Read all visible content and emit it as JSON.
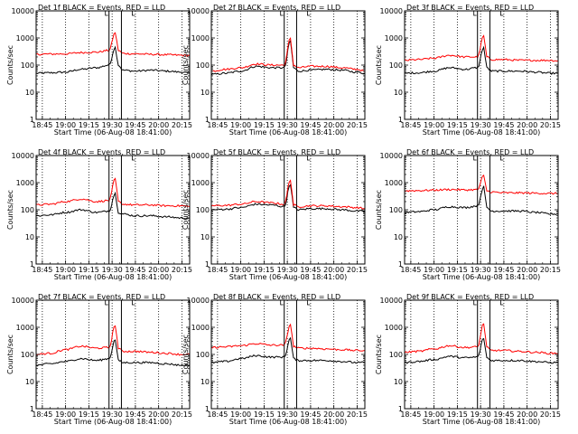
{
  "figure": {
    "xlabel": "Start Time (06-Aug-08 18:41:00)",
    "ylabel": "Counts/sec",
    "x_ticks": [
      "18:45",
      "19:00",
      "19:15",
      "19:30",
      "19:45",
      "20:00",
      "20:15"
    ],
    "y_ticks": [
      "1",
      "10",
      "100",
      "1000",
      "10000"
    ],
    "colors": {
      "events": "#000000",
      "lld": "#ff0000",
      "axes": "#000000",
      "background": "#ffffff"
    }
  },
  "chart_data": [
    {
      "type": "line",
      "title": "Det 1f BLACK = Events, RED = LLD",
      "x": [
        "18:41",
        "18:50",
        "19:00",
        "19:10",
        "19:20",
        "19:28",
        "19:32",
        "19:34",
        "19:37",
        "19:45",
        "19:55",
        "20:05",
        "20:15",
        "20:20"
      ],
      "series": [
        {
          "name": "Events",
          "color": "#000000",
          "values": [
            50,
            52,
            55,
            70,
            80,
            100,
            450,
            100,
            65,
            60,
            65,
            60,
            55,
            50
          ]
        },
        {
          "name": "LLD",
          "color": "#ff0000",
          "values": [
            250,
            255,
            260,
            290,
            300,
            350,
            1600,
            350,
            270,
            260,
            250,
            240,
            230,
            225
          ]
        }
      ],
      "xlim": [
        "18:41",
        "20:20"
      ],
      "ylim": [
        1,
        10000
      ],
      "log_y": true,
      "markers": [
        "19:28",
        "19:36"
      ],
      "grid": "x-dotted"
    },
    {
      "type": "line",
      "title": "Det 2f BLACK = Events, RED = LLD",
      "x": [
        "18:41",
        "18:50",
        "19:00",
        "19:10",
        "19:20",
        "19:28",
        "19:32",
        "19:34",
        "19:37",
        "19:45",
        "19:55",
        "20:05",
        "20:15",
        "20:20"
      ],
      "series": [
        {
          "name": "Events",
          "color": "#000000",
          "values": [
            45,
            50,
            60,
            90,
            80,
            80,
            800,
            80,
            60,
            65,
            70,
            65,
            55,
            50
          ]
        },
        {
          "name": "LLD",
          "color": "#ff0000",
          "values": [
            60,
            70,
            80,
            110,
            100,
            100,
            1000,
            100,
            80,
            90,
            90,
            80,
            70,
            60
          ]
        }
      ],
      "xlim": [
        "18:41",
        "20:20"
      ],
      "ylim": [
        1,
        10000
      ],
      "log_y": true,
      "markers": [
        "19:28",
        "19:36"
      ],
      "grid": "x-dotted"
    },
    {
      "type": "line",
      "title": "Det 3f BLACK = Events, RED = LLD",
      "x": [
        "18:41",
        "18:50",
        "19:00",
        "19:10",
        "19:20",
        "19:28",
        "19:32",
        "19:34",
        "19:37",
        "19:45",
        "19:55",
        "20:05",
        "20:15",
        "20:20"
      ],
      "series": [
        {
          "name": "Events",
          "color": "#000000",
          "values": [
            50,
            52,
            60,
            80,
            70,
            80,
            450,
            80,
            60,
            60,
            60,
            55,
            50,
            50
          ]
        },
        {
          "name": "LLD",
          "color": "#ff0000",
          "values": [
            150,
            160,
            180,
            230,
            200,
            200,
            1200,
            200,
            160,
            160,
            150,
            150,
            150,
            145
          ]
        }
      ],
      "xlim": [
        "18:41",
        "20:20"
      ],
      "ylim": [
        1,
        10000
      ],
      "log_y": true,
      "markers": [
        "19:28",
        "19:36"
      ],
      "grid": "x-dotted"
    },
    {
      "type": "line",
      "title": "Det 4f BLACK = Events, RED = LLD",
      "x": [
        "18:41",
        "18:50",
        "19:00",
        "19:10",
        "19:20",
        "19:28",
        "19:32",
        "19:34",
        "19:37",
        "19:45",
        "19:55",
        "20:05",
        "20:15",
        "20:20"
      ],
      "series": [
        {
          "name": "Events",
          "color": "#000000",
          "values": [
            60,
            65,
            80,
            100,
            80,
            90,
            400,
            80,
            70,
            60,
            60,
            55,
            50,
            50
          ]
        },
        {
          "name": "LLD",
          "color": "#ff0000",
          "values": [
            150,
            160,
            200,
            250,
            200,
            220,
            1400,
            200,
            160,
            150,
            150,
            140,
            140,
            130
          ]
        }
      ],
      "xlim": [
        "18:41",
        "20:20"
      ],
      "ylim": [
        1,
        10000
      ],
      "log_y": true,
      "markers": [
        "19:28",
        "19:36"
      ],
      "grid": "x-dotted"
    },
    {
      "type": "line",
      "title": "Det 5f BLACK = Events, RED = LLD",
      "x": [
        "18:41",
        "18:50",
        "19:00",
        "19:10",
        "19:20",
        "19:28",
        "19:32",
        "19:34",
        "19:37",
        "19:45",
        "19:55",
        "20:05",
        "20:15",
        "20:20"
      ],
      "series": [
        {
          "name": "Events",
          "color": "#000000",
          "values": [
            100,
            105,
            120,
            160,
            150,
            130,
            900,
            120,
            100,
            110,
            110,
            100,
            90,
            85
          ]
        },
        {
          "name": "LLD",
          "color": "#ff0000",
          "values": [
            140,
            145,
            160,
            200,
            180,
            160,
            1300,
            150,
            130,
            140,
            140,
            130,
            120,
            110
          ]
        }
      ],
      "xlim": [
        "18:41",
        "20:20"
      ],
      "ylim": [
        1,
        10000
      ],
      "log_y": true,
      "markers": [
        "19:28",
        "19:36"
      ],
      "grid": "x-dotted"
    },
    {
      "type": "line",
      "title": "Det 6f BLACK = Events, RED = LLD",
      "x": [
        "18:41",
        "18:50",
        "19:00",
        "19:10",
        "19:20",
        "19:28",
        "19:32",
        "19:34",
        "19:37",
        "19:45",
        "19:55",
        "20:05",
        "20:15",
        "20:20"
      ],
      "series": [
        {
          "name": "Events",
          "color": "#000000",
          "values": [
            80,
            85,
            100,
            130,
            120,
            140,
            700,
            120,
            90,
            90,
            90,
            80,
            70,
            70
          ]
        },
        {
          "name": "LLD",
          "color": "#ff0000",
          "values": [
            500,
            510,
            530,
            560,
            540,
            550,
            1800,
            500,
            450,
            420,
            420,
            410,
            400,
            400
          ]
        }
      ],
      "xlim": [
        "18:41",
        "20:20"
      ],
      "ylim": [
        1,
        10000
      ],
      "log_y": true,
      "markers": [
        "19:28",
        "19:36"
      ],
      "grid": "x-dotted"
    },
    {
      "type": "line",
      "title": "Det 7f BLACK = Events, RED = LLD",
      "x": [
        "18:41",
        "18:50",
        "19:00",
        "19:10",
        "19:20",
        "19:28",
        "19:32",
        "19:34",
        "19:37",
        "19:45",
        "19:55",
        "20:05",
        "20:15",
        "20:20"
      ],
      "series": [
        {
          "name": "Events",
          "color": "#000000",
          "values": [
            40,
            45,
            55,
            70,
            60,
            70,
            350,
            60,
            50,
            50,
            50,
            45,
            40,
            40
          ]
        },
        {
          "name": "LLD",
          "color": "#ff0000",
          "values": [
            100,
            110,
            150,
            200,
            170,
            180,
            1200,
            170,
            130,
            130,
            120,
            110,
            100,
            100
          ]
        }
      ],
      "xlim": [
        "18:41",
        "20:20"
      ],
      "ylim": [
        1,
        10000
      ],
      "log_y": true,
      "markers": [
        "19:28",
        "19:36"
      ],
      "grid": "x-dotted"
    },
    {
      "type": "line",
      "title": "Det 8f BLACK = Events, RED = LLD",
      "x": [
        "18:41",
        "18:50",
        "19:00",
        "19:10",
        "19:20",
        "19:28",
        "19:32",
        "19:34",
        "19:37",
        "19:45",
        "19:55",
        "20:05",
        "20:15",
        "20:20"
      ],
      "series": [
        {
          "name": "Events",
          "color": "#000000",
          "values": [
            50,
            55,
            70,
            90,
            80,
            80,
            400,
            70,
            60,
            60,
            60,
            55,
            50,
            50
          ]
        },
        {
          "name": "LLD",
          "color": "#ff0000",
          "values": [
            180,
            190,
            210,
            250,
            220,
            220,
            1300,
            200,
            170,
            170,
            160,
            150,
            140,
            140
          ]
        }
      ],
      "xlim": [
        "18:41",
        "20:20"
      ],
      "ylim": [
        1,
        10000
      ],
      "log_y": true,
      "markers": [
        "19:28",
        "19:36"
      ],
      "grid": "x-dotted"
    },
    {
      "type": "line",
      "title": "Det 9f BLACK = Events, RED = LLD",
      "x": [
        "18:41",
        "18:50",
        "19:00",
        "19:10",
        "19:20",
        "19:28",
        "19:32",
        "19:34",
        "19:37",
        "19:45",
        "19:55",
        "20:05",
        "20:15",
        "20:20"
      ],
      "series": [
        {
          "name": "Events",
          "color": "#000000",
          "values": [
            50,
            55,
            65,
            85,
            75,
            80,
            400,
            75,
            60,
            60,
            60,
            55,
            50,
            50
          ]
        },
        {
          "name": "LLD",
          "color": "#ff0000",
          "values": [
            120,
            130,
            160,
            210,
            180,
            190,
            1400,
            180,
            140,
            140,
            130,
            120,
            110,
            110
          ]
        }
      ],
      "xlim": [
        "18:41",
        "20:20"
      ],
      "ylim": [
        1,
        10000
      ],
      "log_y": true,
      "markers": [
        "19:28",
        "19:36"
      ],
      "grid": "x-dotted"
    }
  ]
}
